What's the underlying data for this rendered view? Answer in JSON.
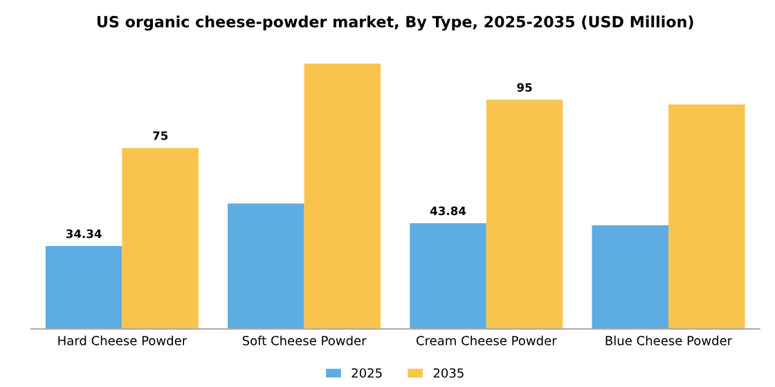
{
  "chart_data": {
    "type": "bar",
    "title": "US organic cheese-powder market, By Type, 2025-2035 (USD Million)",
    "categories": [
      "Hard Cheese Powder",
      "Soft Cheese Powder",
      "Cream Cheese Powder",
      "Blue Cheese Powder"
    ],
    "series": [
      {
        "name": "2025",
        "color": "#5dade2",
        "values": [
          34.34,
          52,
          43.84,
          43
        ],
        "value_labels": [
          "34.34",
          null,
          "43.84",
          null
        ]
      },
      {
        "name": "2035",
        "color": "#f9c44e",
        "values": [
          75,
          110,
          95,
          93
        ],
        "value_labels": [
          "75",
          null,
          "95",
          null
        ]
      }
    ],
    "legend": "bottom",
    "grid": false,
    "tick_labels": "x"
  }
}
